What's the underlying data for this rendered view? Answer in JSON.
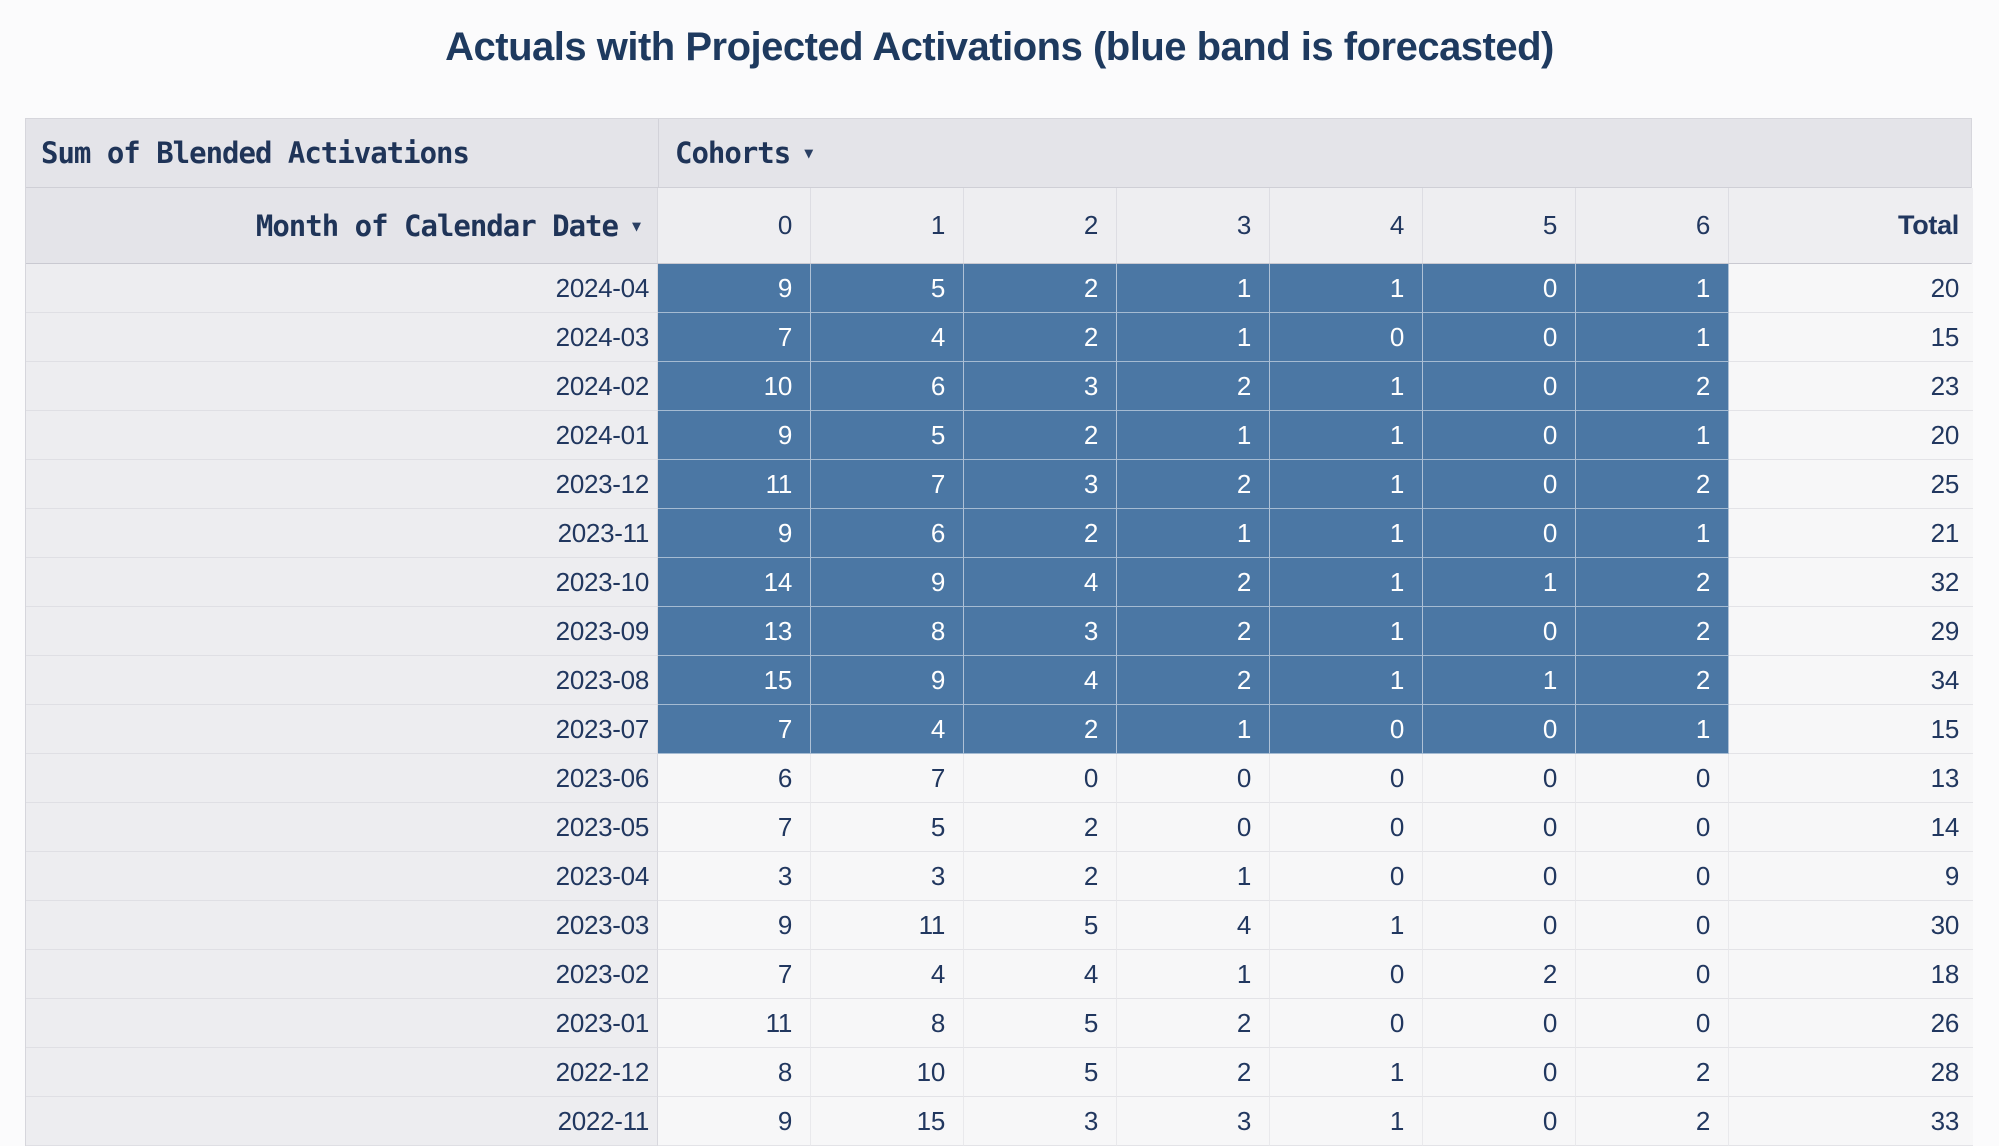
{
  "title": "Actuals with Projected Activations (blue band is forecasted)",
  "colors": {
    "forecast_band": "#4b77a4",
    "title_text": "#1e3a5f",
    "header_bg": "#e4e4e9",
    "subheader_bg": "#eeeef1",
    "row_label_bg": "#ededf0",
    "cell_bg": "#f7f7f8",
    "forecast_text": "#ffffff",
    "data_text": "#21375f"
  },
  "table": {
    "measure_label": "Sum of Blended Activations",
    "cohorts_label": "Cohorts",
    "month_label": "Month of Calendar Date",
    "dropdown_arrow": "▼",
    "cohort_headers": [
      "0",
      "1",
      "2",
      "3",
      "4",
      "5",
      "6"
    ],
    "total_header": "Total",
    "rows": [
      {
        "month": "2024-04",
        "values": [
          9,
          5,
          2,
          1,
          1,
          0,
          1
        ],
        "total": 20,
        "forecast": true
      },
      {
        "month": "2024-03",
        "values": [
          7,
          4,
          2,
          1,
          0,
          0,
          1
        ],
        "total": 15,
        "forecast": true
      },
      {
        "month": "2024-02",
        "values": [
          10,
          6,
          3,
          2,
          1,
          0,
          2
        ],
        "total": 23,
        "forecast": true
      },
      {
        "month": "2024-01",
        "values": [
          9,
          5,
          2,
          1,
          1,
          0,
          1
        ],
        "total": 20,
        "forecast": true
      },
      {
        "month": "2023-12",
        "values": [
          11,
          7,
          3,
          2,
          1,
          0,
          2
        ],
        "total": 25,
        "forecast": true
      },
      {
        "month": "2023-11",
        "values": [
          9,
          6,
          2,
          1,
          1,
          0,
          1
        ],
        "total": 21,
        "forecast": true
      },
      {
        "month": "2023-10",
        "values": [
          14,
          9,
          4,
          2,
          1,
          1,
          2
        ],
        "total": 32,
        "forecast": true
      },
      {
        "month": "2023-09",
        "values": [
          13,
          8,
          3,
          2,
          1,
          0,
          2
        ],
        "total": 29,
        "forecast": true
      },
      {
        "month": "2023-08",
        "values": [
          15,
          9,
          4,
          2,
          1,
          1,
          2
        ],
        "total": 34,
        "forecast": true
      },
      {
        "month": "2023-07",
        "values": [
          7,
          4,
          2,
          1,
          0,
          0,
          1
        ],
        "total": 15,
        "forecast": true
      },
      {
        "month": "2023-06",
        "values": [
          6,
          7,
          0,
          0,
          0,
          0,
          0
        ],
        "total": 13,
        "forecast": false
      },
      {
        "month": "2023-05",
        "values": [
          7,
          5,
          2,
          0,
          0,
          0,
          0
        ],
        "total": 14,
        "forecast": false
      },
      {
        "month": "2023-04",
        "values": [
          3,
          3,
          2,
          1,
          0,
          0,
          0
        ],
        "total": 9,
        "forecast": false
      },
      {
        "month": "2023-03",
        "values": [
          9,
          11,
          5,
          4,
          1,
          0,
          0
        ],
        "total": 30,
        "forecast": false
      },
      {
        "month": "2023-02",
        "values": [
          7,
          4,
          4,
          1,
          0,
          2,
          0
        ],
        "total": 18,
        "forecast": false
      },
      {
        "month": "2023-01",
        "values": [
          11,
          8,
          5,
          2,
          0,
          0,
          0
        ],
        "total": 26,
        "forecast": false
      },
      {
        "month": "2022-12",
        "values": [
          8,
          10,
          5,
          2,
          1,
          0,
          2
        ],
        "total": 28,
        "forecast": false
      },
      {
        "month": "2022-11",
        "values": [
          9,
          15,
          3,
          3,
          1,
          0,
          2
        ],
        "total": 33,
        "forecast": false
      }
    ]
  }
}
